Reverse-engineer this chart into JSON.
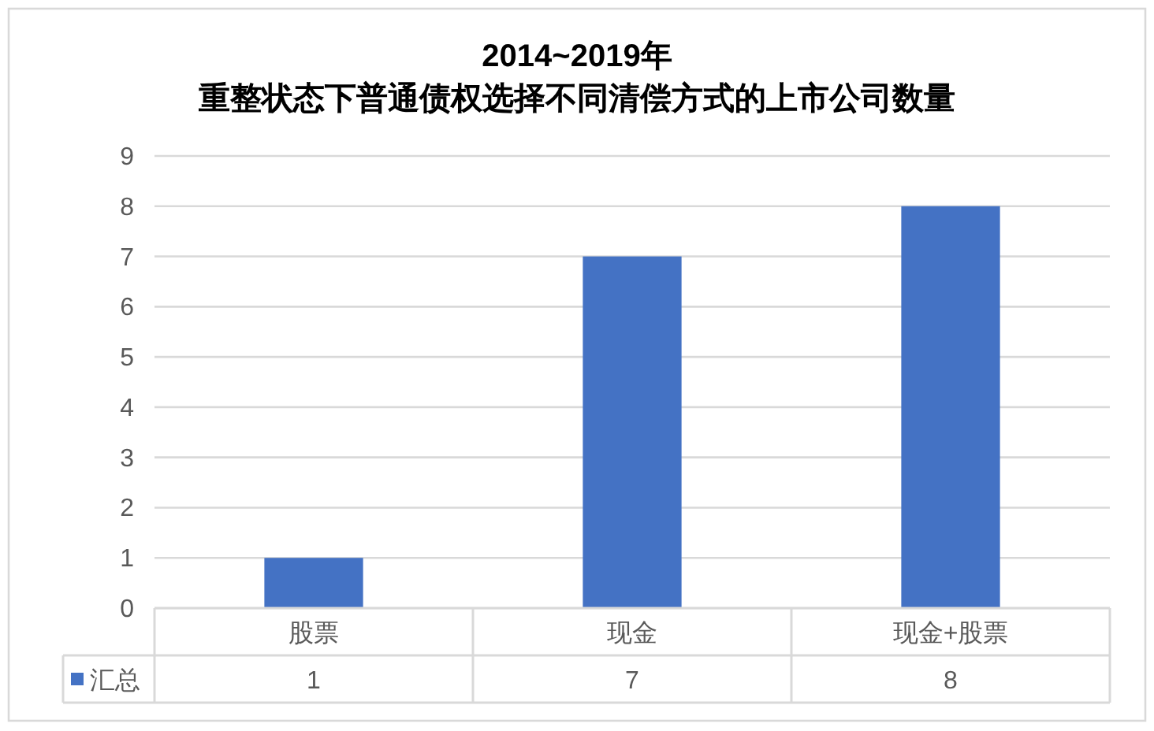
{
  "chart_data": {
    "type": "bar",
    "title": "2014~2019年",
    "subtitle": "重整状态下普通债权选择不同清偿方式的上市公司数量",
    "categories": [
      "股票",
      "现金",
      "现金+股票"
    ],
    "series": [
      {
        "name": "汇总",
        "color": "#4472c4",
        "values": [
          1,
          7,
          8
        ]
      }
    ],
    "ylim": [
      0,
      9
    ],
    "yticks": [
      0,
      1,
      2,
      3,
      4,
      5,
      6,
      7,
      8,
      9
    ],
    "grid": "y",
    "legend": "bottom",
    "data_labels": true
  }
}
